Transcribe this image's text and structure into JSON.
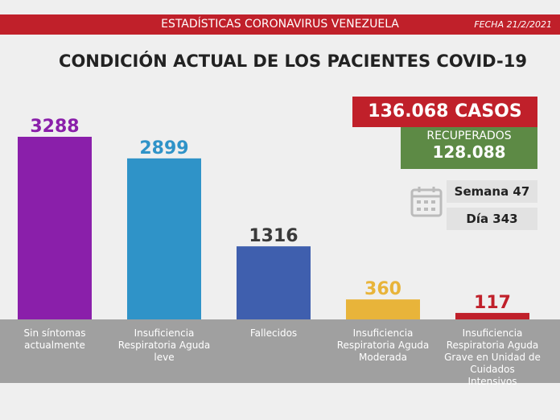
{
  "chart_data": {
    "type": "bar",
    "header": "ESTADÍSTICAS CORONAVIRUS VENEZUELA",
    "date": "FECHA 21/2/2021",
    "title": "CONDICIÓN ACTUAL DE LOS PACIENTES COVID-19",
    "total_cases": "136.068 CASOS",
    "recovered_label": "RECUPERADOS",
    "recovered_value": "128.088",
    "week": "Semana 47",
    "day": "Día 343",
    "categories": [
      "Sin síntomas actualmente",
      "Insuficiencia Respiratoria Aguda leve",
      "Fallecidos",
      "Insuficiencia Respiratoria Aguda Moderada",
      "Insuficiencia Respiratoria Aguda Grave en Unidad de Cuidados Intensivos"
    ],
    "values": [
      3288,
      2899,
      1316,
      360,
      117
    ],
    "colors": [
      "#8a1faa",
      "#2f93c8",
      "#3f5fae",
      "#e8b43a",
      "#c0202a"
    ],
    "label_colors": [
      "#8a1faa",
      "#2f93c8",
      "#3a3a3a",
      "#e8b43a",
      "#c0202a"
    ]
  }
}
